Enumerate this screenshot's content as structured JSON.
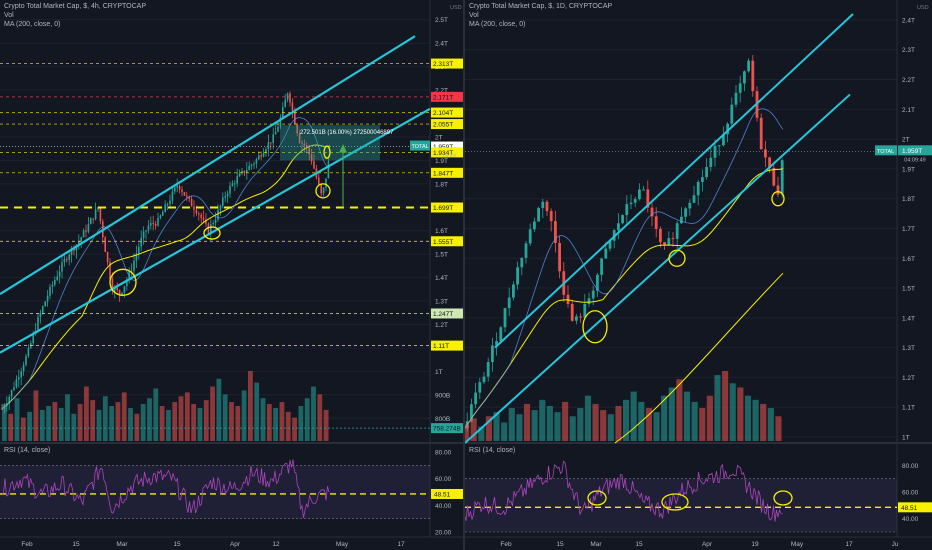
{
  "left": {
    "title": "Crypto Total Market Cap, $, 4h, CRYPTOCAP",
    "vol_label": "Vol",
    "ma_label": "MA (200, close, 0)",
    "rsi_label": "RSI (14, close)",
    "currency": "USD",
    "price_axis": [
      "2.5T",
      "2.4T",
      "2.3T",
      "2.2T",
      "2.1T",
      "2T",
      "1.9T",
      "1.8T",
      "1.7T",
      "1.6T",
      "1.5T",
      "1.4T",
      "1.3T",
      "1.2T",
      "1.1T",
      "1T",
      "900B",
      "800B"
    ],
    "level_tags": [
      {
        "label": "2.313T",
        "color": "#f7f000"
      },
      {
        "label": "2.171T",
        "color": "#f23645"
      },
      {
        "label": "2.104T",
        "color": "#f7f000"
      },
      {
        "label": "2.055T",
        "color": "#f7f000"
      },
      {
        "label": "1.959T",
        "color": "#ffffff"
      },
      {
        "label": "1.934T",
        "color": "#f7f000"
      },
      {
        "label": "1.847T",
        "color": "#f7f000"
      },
      {
        "label": "1.699T",
        "color": "#f7f000"
      },
      {
        "label": "1.555T",
        "color": "#f7f000"
      },
      {
        "label": "1.247T",
        "color": "#cde8b0"
      },
      {
        "label": "1.11T",
        "color": "#f7f000"
      },
      {
        "label": "758.274B",
        "color": "#26a69a"
      }
    ],
    "total_tag": "TOTAL",
    "total_countdown": "19:49",
    "measure_label": "272.501B (16.00%) 272500046897",
    "rsi_axis": [
      "80.00",
      "60.00",
      "40.00",
      "20.00"
    ],
    "rsi_value": "48.51",
    "time_axis": [
      "Feb",
      "15",
      "Mar",
      "15",
      "Apr",
      "12",
      "May",
      "17"
    ]
  },
  "right": {
    "title": "Crypto Total Market Cap, $, 1D, CRYPTOCAP",
    "vol_label": "Vol",
    "ma_label": "MA (200, close, 0)",
    "rsi_label": "RSI (14, close)",
    "currency": "USD",
    "price_axis": [
      "2.4T",
      "2.3T",
      "2.2T",
      "2.1T",
      "2T",
      "1.9T",
      "1.8T",
      "1.7T",
      "1.6T",
      "1.5T",
      "1.4T",
      "1.3T",
      "1.2T",
      "1.1T",
      "1T"
    ],
    "total_tag": "TOTAL",
    "total_value": "1.959T",
    "total_countdown": "04:09:49",
    "rsi_axis": [
      "80.00",
      "60.00",
      "40.00"
    ],
    "rsi_value": "48.51",
    "time_axis": [
      "Feb",
      "15",
      "Mar",
      "15",
      "Apr",
      "19",
      "May",
      "17",
      "Ju"
    ]
  },
  "chart_data": [
    {
      "type": "candlestick",
      "title": "Crypto Total Market Cap, $, 4h, CRYPTOCAP",
      "interval": "4h",
      "y_unit": "T",
      "ylim": [
        0.75,
        2.55
      ],
      "close_path": [
        [
          0,
          0.84
        ],
        [
          8,
          0.9
        ],
        [
          16,
          0.98
        ],
        [
          26,
          1.08
        ],
        [
          36,
          1.22
        ],
        [
          46,
          1.33
        ],
        [
          56,
          1.42
        ],
        [
          66,
          1.5
        ],
        [
          76,
          1.55
        ],
        [
          86,
          1.62
        ],
        [
          96,
          1.7
        ],
        [
          104,
          1.5
        ],
        [
          110,
          1.36
        ],
        [
          118,
          1.33
        ],
        [
          128,
          1.42
        ],
        [
          138,
          1.55
        ],
        [
          146,
          1.62
        ],
        [
          156,
          1.64
        ],
        [
          166,
          1.72
        ],
        [
          176,
          1.8
        ],
        [
          186,
          1.73
        ],
        [
          196,
          1.68
        ],
        [
          206,
          1.6
        ],
        [
          214,
          1.66
        ],
        [
          224,
          1.76
        ],
        [
          234,
          1.82
        ],
        [
          244,
          1.86
        ],
        [
          254,
          1.9
        ],
        [
          264,
          1.96
        ],
        [
          272,
          2.0
        ],
        [
          280,
          2.1
        ],
        [
          286,
          2.2
        ],
        [
          292,
          2.08
        ],
        [
          298,
          1.98
        ],
        [
          304,
          1.96
        ],
        [
          310,
          1.9
        ],
        [
          316,
          1.8
        ],
        [
          320,
          1.74
        ],
        [
          324,
          1.83
        ],
        [
          328,
          1.93
        ]
      ],
      "volume": [
        95,
        70,
        110,
        60,
        75,
        130,
        80,
        90,
        100,
        85,
        120,
        70,
        95,
        140,
        105,
        80,
        115,
        90,
        100,
        125,
        85,
        70,
        95,
        110,
        135,
        90,
        80,
        100,
        115,
        125,
        95,
        85,
        105,
        140,
        160,
        120,
        100,
        90,
        130,
        180,
        150,
        110,
        95,
        85,
        100,
        75,
        60,
        90,
        110,
        140,
        120,
        80
      ],
      "rsi": {
        "range": [
          20,
          80
        ],
        "points": [
          [
            0,
            52
          ],
          [
            20,
            60
          ],
          [
            40,
            48
          ],
          [
            60,
            56
          ],
          [
            80,
            42
          ],
          [
            100,
            70
          ],
          [
            110,
            38
          ],
          [
            130,
            55
          ],
          [
            150,
            62
          ],
          [
            170,
            60
          ],
          [
            190,
            36
          ],
          [
            210,
            58
          ],
          [
            230,
            52
          ],
          [
            250,
            64
          ],
          [
            270,
            58
          ],
          [
            290,
            72
          ],
          [
            300,
            36
          ],
          [
            312,
            46
          ],
          [
            328,
            50
          ]
        ]
      },
      "overlays": [
        "MA (200, close, 0)"
      ],
      "levels": [
        2.313,
        2.171,
        2.104,
        2.055,
        1.959,
        1.934,
        1.847,
        1.699,
        1.555,
        1.247,
        1.11,
        0.758
      ],
      "last": 1.959
    },
    {
      "type": "candlestick",
      "title": "Crypto Total Market Cap, $, 1D, CRYPTOCAP",
      "interval": "1D",
      "y_unit": "T",
      "ylim": [
        1.0,
        2.42
      ],
      "close_path": [
        [
          0,
          1.02
        ],
        [
          10,
          1.12
        ],
        [
          20,
          1.2
        ],
        [
          30,
          1.3
        ],
        [
          40,
          1.4
        ],
        [
          50,
          1.52
        ],
        [
          60,
          1.62
        ],
        [
          70,
          1.72
        ],
        [
          80,
          1.8
        ],
        [
          90,
          1.7
        ],
        [
          100,
          1.5
        ],
        [
          110,
          1.38
        ],
        [
          120,
          1.42
        ],
        [
          130,
          1.5
        ],
        [
          140,
          1.6
        ],
        [
          150,
          1.68
        ],
        [
          160,
          1.75
        ],
        [
          170,
          1.8
        ],
        [
          180,
          1.83
        ],
        [
          190,
          1.72
        ],
        [
          200,
          1.62
        ],
        [
          210,
          1.68
        ],
        [
          220,
          1.76
        ],
        [
          230,
          1.82
        ],
        [
          240,
          1.88
        ],
        [
          250,
          1.95
        ],
        [
          260,
          2.02
        ],
        [
          270,
          2.12
        ],
        [
          280,
          2.2
        ],
        [
          286,
          2.26
        ],
        [
          292,
          2.1
        ],
        [
          298,
          1.98
        ],
        [
          304,
          1.92
        ],
        [
          310,
          1.86
        ],
        [
          316,
          1.82
        ],
        [
          320,
          1.94
        ]
      ],
      "volume": [
        40,
        55,
        35,
        60,
        70,
        45,
        80,
        65,
        90,
        75,
        100,
        85,
        70,
        95,
        60,
        80,
        110,
        90,
        75,
        65,
        85,
        100,
        120,
        95,
        80,
        70,
        110,
        130,
        150,
        120,
        95,
        80,
        110,
        160,
        170,
        140,
        130,
        110,
        100,
        90,
        80,
        60
      ],
      "rsi": {
        "range": [
          30,
          90
        ],
        "points": [
          [
            0,
            42
          ],
          [
            20,
            52
          ],
          [
            40,
            48
          ],
          [
            60,
            60
          ],
          [
            80,
            72
          ],
          [
            100,
            80
          ],
          [
            110,
            60
          ],
          [
            120,
            44
          ],
          [
            140,
            62
          ],
          [
            160,
            70
          ],
          [
            180,
            52
          ],
          [
            200,
            46
          ],
          [
            220,
            62
          ],
          [
            240,
            70
          ],
          [
            260,
            74
          ],
          [
            270,
            78
          ],
          [
            290,
            60
          ],
          [
            300,
            50
          ],
          [
            310,
            44
          ],
          [
            320,
            48
          ]
        ]
      },
      "overlays": [
        "MA (200, close, 0)"
      ],
      "last": 1.959
    }
  ]
}
